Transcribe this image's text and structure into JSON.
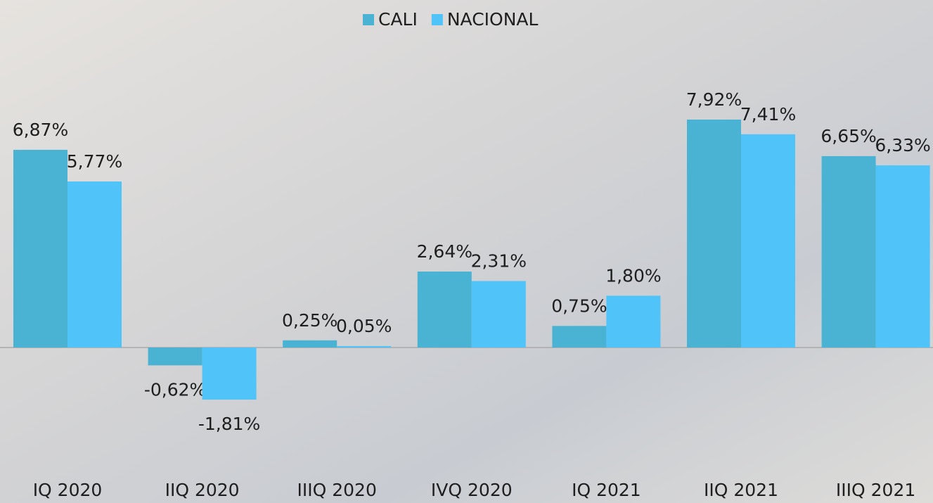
{
  "chart_data": {
    "type": "bar",
    "categories": [
      "IQ 2020",
      "IIQ 2020",
      "IIIQ 2020",
      "IVQ 2020",
      "IQ 2021",
      "IIQ 2021",
      "IIIQ 2021"
    ],
    "series": [
      {
        "name": "CALI",
        "color": "#4ab3d4",
        "values": [
          6.87,
          -0.62,
          0.25,
          2.64,
          0.75,
          7.92,
          6.65
        ],
        "value_labels": [
          "6,87%",
          "-0,62%",
          "0,25%",
          "2,64%",
          "0,75%",
          "7,92%",
          "6,65%"
        ]
      },
      {
        "name": "NACIONAL",
        "color": "#50c3f8",
        "values": [
          5.77,
          -1.81,
          0.05,
          2.31,
          1.8,
          7.41,
          6.33
        ],
        "value_labels": [
          "5,77%",
          "-1,81%",
          "0,05%",
          "2,31%",
          "1,80%",
          "7,41%",
          "6,33%"
        ]
      }
    ],
    "legend": "top"
  }
}
